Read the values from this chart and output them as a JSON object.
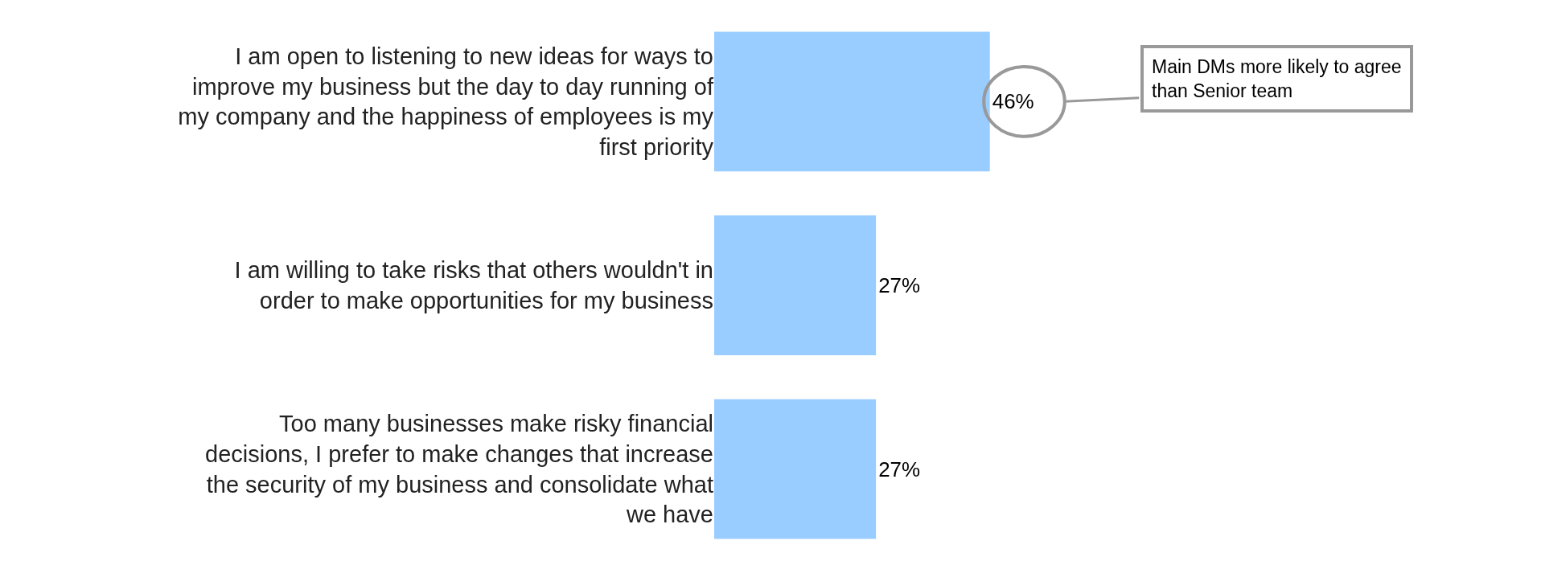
{
  "chart_data": {
    "type": "bar",
    "orientation": "horizontal",
    "categories": [
      "I am open to listening to new ideas for ways to improve my business but the day to day running of my company and the happiness of employees is my first priority",
      "I am willing to take risks that others wouldn't in order to make opportunities for my business",
      "Too many businesses make risky financial decisions, I prefer to make changes that increase the security of my business and consolidate what we have"
    ],
    "values": [
      46,
      27,
      27
    ],
    "color": "#99ccff",
    "data_labels": true,
    "value_labels": [
      "46%",
      "27%",
      "27%"
    ],
    "annotations": [
      "Main DMs more likely to agree than Senior team"
    ],
    "legend": false
  }
}
